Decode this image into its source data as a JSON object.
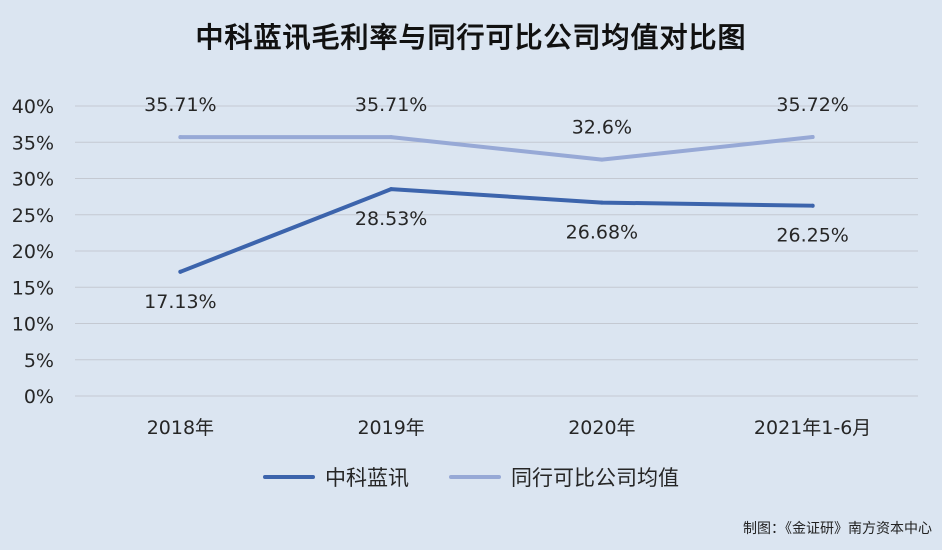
{
  "chart_data": {
    "type": "line",
    "title": "中科蓝讯毛利率与同行可比公司均值对比图",
    "categories": [
      "2018年",
      "2019年",
      "2020年",
      "2021年1-6月"
    ],
    "series": [
      {
        "name": "中科蓝讯",
        "values": [
          17.13,
          28.53,
          26.68,
          26.25
        ],
        "labels": [
          "17.13%",
          "28.53%",
          "26.68%",
          "26.25%"
        ],
        "color": "#3c64ac"
      },
      {
        "name": "同行可比公司均值",
        "values": [
          35.71,
          35.71,
          32.6,
          35.72
        ],
        "labels": [
          "35.71%",
          "35.71%",
          "32.6%",
          "35.72%"
        ],
        "color": "#97a9d6"
      }
    ],
    "y_ticks": [
      "0%",
      "5%",
      "10%",
      "15%",
      "20%",
      "25%",
      "30%",
      "35%",
      "40%"
    ],
    "ylim": [
      0,
      40
    ],
    "grid": true,
    "legend_position": "bottom",
    "source_note": "制图：《金证研》南方资本中心"
  }
}
